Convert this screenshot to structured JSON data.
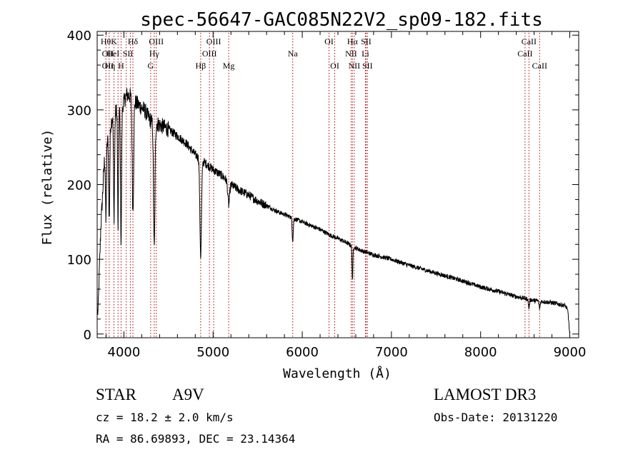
{
  "chart_data": {
    "type": "line",
    "title": "spec-56647-GAC085N22V2_sp09-182.fits",
    "xlabel": "Wavelength (Å)",
    "ylabel": "Flux (relative)",
    "xlim": [
      3700,
      9100
    ],
    "ylim": [
      -5,
      405
    ],
    "x_ticks": [
      4000,
      5000,
      6000,
      7000,
      8000,
      9000
    ],
    "y_ticks": [
      0,
      100,
      200,
      300,
      400
    ],
    "grid": false,
    "line_color": "#000000",
    "marker_color": "#b00000",
    "continuum": [
      [
        3710,
        30
      ],
      [
        3740,
        140
      ],
      [
        3780,
        230
      ],
      [
        3830,
        270
      ],
      [
        3880,
        295
      ],
      [
        3930,
        300
      ],
      [
        3980,
        305
      ],
      [
        4030,
        320
      ],
      [
        4080,
        318
      ],
      [
        4130,
        310
      ],
      [
        4180,
        305
      ],
      [
        4230,
        300
      ],
      [
        4300,
        285
      ],
      [
        4400,
        280
      ],
      [
        4500,
        274
      ],
      [
        4600,
        265
      ],
      [
        4700,
        255
      ],
      [
        4800,
        240
      ],
      [
        4900,
        230
      ],
      [
        5000,
        220
      ],
      [
        5100,
        212
      ],
      [
        5200,
        200
      ],
      [
        5300,
        192
      ],
      [
        5400,
        186
      ],
      [
        5500,
        178
      ],
      [
        5600,
        172
      ],
      [
        5700,
        165
      ],
      [
        5800,
        160
      ],
      [
        5900,
        155
      ],
      [
        6000,
        150
      ],
      [
        6100,
        145
      ],
      [
        6200,
        140
      ],
      [
        6300,
        133
      ],
      [
        6400,
        128
      ],
      [
        6500,
        122
      ],
      [
        6600,
        115
      ],
      [
        6700,
        110
      ],
      [
        6800,
        106
      ],
      [
        7000,
        100
      ],
      [
        7200,
        92
      ],
      [
        7400,
        85
      ],
      [
        7600,
        78
      ],
      [
        7800,
        71
      ],
      [
        8000,
        63
      ],
      [
        8200,
        57
      ],
      [
        8400,
        50
      ],
      [
        8600,
        45
      ],
      [
        8800,
        42
      ],
      [
        8950,
        38
      ],
      [
        8980,
        30
      ],
      [
        8995,
        5
      ],
      [
        9000,
        0
      ]
    ],
    "absorption_features": [
      [
        3798,
        95,
        5
      ],
      [
        3835,
        120,
        6
      ],
      [
        3889,
        140,
        6
      ],
      [
        3934,
        160,
        5
      ],
      [
        3968,
        180,
        6
      ],
      [
        4101,
        150,
        8
      ],
      [
        4340,
        170,
        8
      ],
      [
        4861,
        130,
        9
      ],
      [
        5175,
        30,
        10
      ],
      [
        5893,
        30,
        6
      ],
      [
        6563,
        45,
        5
      ],
      [
        8542,
        12,
        6
      ],
      [
        8662,
        10,
        6
      ]
    ],
    "line_markers": [
      {
        "x": 3798,
        "label": "Hθ",
        "row": 0
      },
      {
        "x": 3835,
        "label": "Hη",
        "row": 0
      },
      {
        "x": 3889,
        "label": "HeI",
        "row": 0
      },
      {
        "x": 3934,
        "label": "K",
        "row": 0
      },
      {
        "x": 3968,
        "label": "H",
        "row": 0
      },
      {
        "x": 4026,
        "label": "HeI",
        "row": 0
      },
      {
        "x": 4072,
        "label": "SII",
        "row": 0
      },
      {
        "x": 4101,
        "label": "Hδ",
        "row": 0
      },
      {
        "x": 4300,
        "label": "G",
        "row": 0
      },
      {
        "x": 4340,
        "label": "Hγ",
        "row": 0
      },
      {
        "x": 4363,
        "label": "OIII",
        "row": 0
      },
      {
        "x": 4861,
        "label": "Hβ",
        "row": 0
      },
      {
        "x": 4959,
        "label": "OIII",
        "row": 0
      },
      {
        "x": 5007,
        "label": "OIII",
        "row": 0
      },
      {
        "x": 5175,
        "label": "Mg",
        "row": 0
      },
      {
        "x": 5893,
        "label": "Na",
        "row": 0
      },
      {
        "x": 6300,
        "label": "OI",
        "row": 0
      },
      {
        "x": 6364,
        "label": "OI",
        "row": 0
      },
      {
        "x": 6548,
        "label": "NII",
        "row": 0
      },
      {
        "x": 6563,
        "label": "Hα",
        "row": 0
      },
      {
        "x": 6583,
        "label": "NII",
        "row": 0
      },
      {
        "x": 6708,
        "label": "Li",
        "row": 0
      },
      {
        "x": 6716,
        "label": "SII",
        "row": 0
      },
      {
        "x": 6731,
        "label": "SII",
        "row": 0
      },
      {
        "x": 8498,
        "label": "CaII",
        "row": 0
      },
      {
        "x": 8542,
        "label": "CaII",
        "row": 0
      },
      {
        "x": 8662,
        "label": "CaII",
        "row": 0
      }
    ],
    "marker_labels": [
      {
        "x": 3797,
        "row": 0,
        "text": "Hθ"
      },
      {
        "x": 3820,
        "row": 1,
        "text": "OII"
      },
      {
        "x": 3820,
        "row": 2,
        "text": "OII"
      },
      {
        "x": 3889,
        "row": 0,
        "text": "K"
      },
      {
        "x": 3878,
        "row": 1,
        "text": "HeI"
      },
      {
        "x": 3843,
        "row": 2,
        "text": "Hη"
      },
      {
        "x": 3968,
        "row": 2,
        "text": "H"
      },
      {
        "x": 4101,
        "row": 0,
        "text": "Hδ"
      },
      {
        "x": 4045,
        "row": 1,
        "text": "SII"
      },
      {
        "x": 4363,
        "row": 0,
        "text": "OIII"
      },
      {
        "x": 4340,
        "row": 1,
        "text": "Hγ"
      },
      {
        "x": 4300,
        "row": 2,
        "text": "G"
      },
      {
        "x": 4861,
        "row": 2,
        "text": "Hβ"
      },
      {
        "x": 5007,
        "row": 0,
        "text": "OIII"
      },
      {
        "x": 4959,
        "row": 1,
        "text": "OIII"
      },
      {
        "x": 5175,
        "row": 2,
        "text": "Mg"
      },
      {
        "x": 5893,
        "row": 1,
        "text": "Na"
      },
      {
        "x": 6300,
        "row": 0,
        "text": "OI"
      },
      {
        "x": 6364,
        "row": 2,
        "text": "OI"
      },
      {
        "x": 6563,
        "row": 0,
        "text": "Hα"
      },
      {
        "x": 6548,
        "row": 1,
        "text": "NII"
      },
      {
        "x": 6583,
        "row": 2,
        "text": "NII"
      },
      {
        "x": 6716,
        "row": 0,
        "text": "SII"
      },
      {
        "x": 6708,
        "row": 1,
        "text": "Li"
      },
      {
        "x": 6731,
        "row": 2,
        "text": "SII"
      },
      {
        "x": 8542,
        "row": 0,
        "text": "CaII"
      },
      {
        "x": 8498,
        "row": 1,
        "text": "CaII"
      },
      {
        "x": 8662,
        "row": 2,
        "text": "CaII"
      }
    ]
  },
  "info": {
    "object_class": "STAR",
    "subclass": "A9V",
    "survey": "LAMOST DR3",
    "redshift": "cz = 18.2 ± 2.0 km/s",
    "obs_date": "Obs-Date: 20131220",
    "coords": "RA =  86.69893, DEC =  23.14364"
  }
}
